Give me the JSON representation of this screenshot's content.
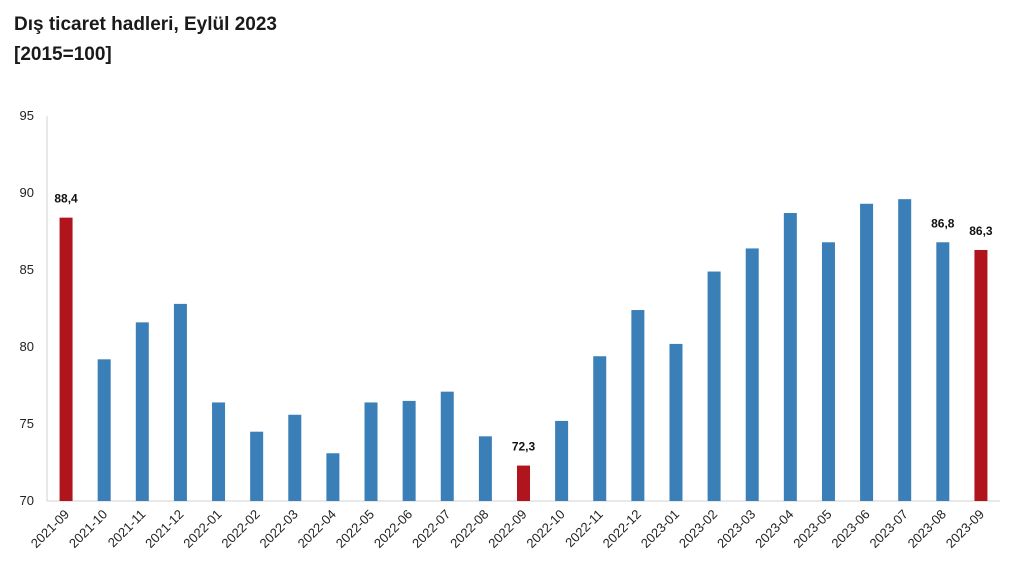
{
  "chart_data": {
    "type": "bar",
    "title": "Dış ticaret hadleri, Eylül 2023",
    "subtitle": "[2015=100]",
    "categories": [
      "2021-09",
      "2021-10",
      "2021-11",
      "2021-12",
      "2022-01",
      "2022-02",
      "2022-03",
      "2022-04",
      "2022-05",
      "2022-06",
      "2022-07",
      "2022-08",
      "2022-09",
      "2022-10",
      "2022-11",
      "2022-12",
      "2023-01",
      "2023-02",
      "2023-03",
      "2023-04",
      "2023-05",
      "2023-06",
      "2023-07",
      "2023-08",
      "2023-09"
    ],
    "values": [
      88.4,
      79.2,
      81.6,
      82.8,
      76.4,
      74.5,
      75.6,
      73.1,
      76.4,
      76.5,
      77.1,
      74.2,
      72.3,
      75.2,
      79.4,
      82.4,
      80.2,
      84.9,
      86.4,
      88.7,
      86.8,
      89.3,
      89.6,
      86.8,
      86.3
    ],
    "highlighted": [
      0,
      12,
      24
    ],
    "data_labels": [
      {
        "index": 0,
        "text": "88,4"
      },
      {
        "index": 12,
        "text": "72,3"
      },
      {
        "index": 23,
        "text": "86,8"
      },
      {
        "index": 24,
        "text": "86,3"
      }
    ],
    "ylim": [
      70,
      95
    ],
    "yticks": [
      70,
      75,
      80,
      85,
      90,
      95
    ],
    "grid": false,
    "legend": "none",
    "colors": {
      "default": "#3a7fb8",
      "highlight": "#b0151d"
    }
  }
}
